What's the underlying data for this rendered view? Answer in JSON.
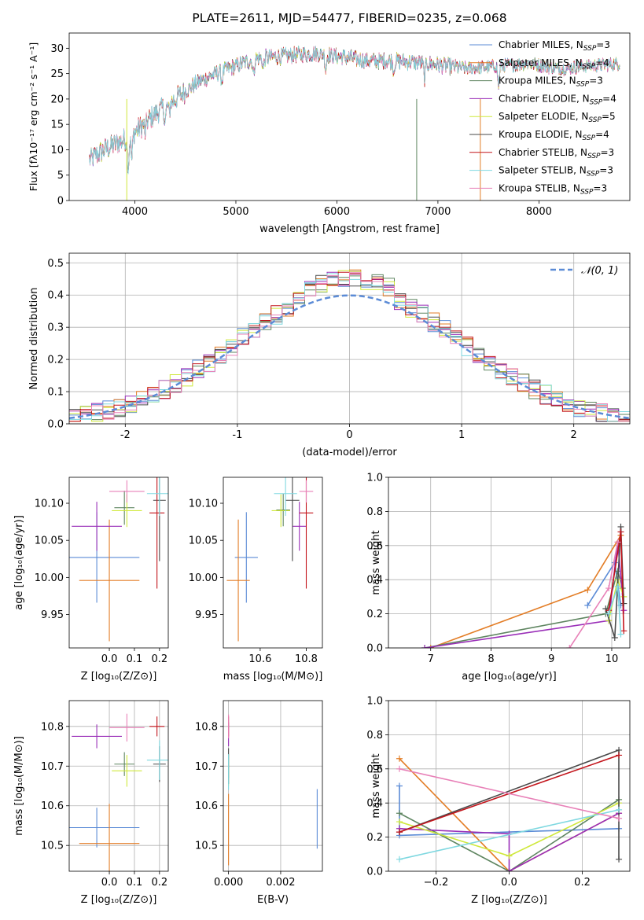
{
  "palette": [
    "#5b8bd6",
    "#e37d26",
    "#5e8560",
    "#9a2fb8",
    "#cfe83b",
    "#4a4a4a",
    "#c3151c",
    "#7fd8e0",
    "#e881b8"
  ],
  "chart_data": [
    {
      "id": "spectrum",
      "type": "line",
      "title": "PLATE=2611, MJD=54477, FIBERID=0235, z=0.068",
      "xlabel": "wavelength [Angstrom, rest frame]",
      "ylabel": "Flux [fλ10⁻¹⁷ erg cm⁻² s⁻¹ A⁻¹]",
      "xlim": [
        3350,
        8900
      ],
      "ylim": [
        0,
        33
      ],
      "xticks": [
        4000,
        5000,
        6000,
        7000,
        8000
      ],
      "yticks": [
        0,
        5,
        10,
        15,
        20,
        25,
        30
      ],
      "legend_position": "top-right",
      "series": [
        {
          "name": "Chabrier MILES, N",
          "sub": "SSP",
          "suffix": "=3"
        },
        {
          "name": "Salpeter MILES, N",
          "sub": "SSP",
          "suffix": "=4"
        },
        {
          "name": "Kroupa MILES, N",
          "sub": "SSP",
          "suffix": "=3"
        },
        {
          "name": "Chabrier ELODIE, N",
          "sub": "SSP",
          "suffix": "=4"
        },
        {
          "name": "Salpeter ELODIE, N",
          "sub": "SSP",
          "suffix": "=5"
        },
        {
          "name": "Kroupa ELODIE, N",
          "sub": "SSP",
          "suffix": "=4"
        },
        {
          "name": "Chabrier STELIB, N",
          "sub": "SSP",
          "suffix": "=3"
        },
        {
          "name": "Salpeter STELIB, N",
          "sub": "SSP",
          "suffix": "=3"
        },
        {
          "name": "Kroupa STELIB, N",
          "sub": "SSP",
          "suffix": "=3"
        }
      ],
      "continuum": [
        [
          3550,
          8
        ],
        [
          3700,
          10
        ],
        [
          3900,
          12
        ],
        [
          4000,
          13.5
        ],
        [
          4200,
          17
        ],
        [
          4400,
          20
        ],
        [
          4600,
          23
        ],
        [
          4800,
          25
        ],
        [
          5000,
          26.5
        ],
        [
          5200,
          28
        ],
        [
          5500,
          28.5
        ],
        [
          5800,
          29
        ],
        [
          6000,
          28.5
        ],
        [
          6300,
          27.5
        ],
        [
          6600,
          27.5
        ],
        [
          6900,
          27
        ],
        [
          7100,
          26.5
        ],
        [
          7300,
          26
        ],
        [
          7600,
          26.5
        ],
        [
          7900,
          27
        ],
        [
          8200,
          26
        ],
        [
          8500,
          26.5
        ],
        [
          8800,
          27
        ]
      ]
    },
    {
      "id": "residuals",
      "type": "histogram",
      "xlabel": "(data-model)/error",
      "ylabel": "Normed distribution",
      "xlim": [
        -2.5,
        2.5
      ],
      "ylim": [
        0,
        0.53
      ],
      "xticks": [
        -2,
        -1,
        0,
        1,
        2
      ],
      "yticks": [
        0.0,
        0.1,
        0.2,
        0.3,
        0.4,
        0.5
      ],
      "bin_width": 0.1,
      "reference_curve": "gaussian(0,1)",
      "legend_position": "top-right",
      "legend": "𝒩(0, 1)"
    },
    {
      "id": "age_vs_Z",
      "type": "errorbar",
      "xlabel": "Z [log₁₀(Z/Z⊙)]",
      "ylabel": "age  [log₁₀(age/yr)]",
      "xlim": [
        -0.16,
        0.235
      ],
      "ylim": [
        9.905,
        10.135
      ],
      "xticks": [
        0.0,
        0.1,
        0.2
      ],
      "xtick_labels": [
        "0.0",
        "0.1",
        "0.2"
      ],
      "yticks": [
        9.95,
        10.0,
        10.05,
        10.1
      ],
      "yticklabels": [
        "9.95",
        "10.00",
        "10.05",
        "10.10"
      ],
      "points": [
        {
          "x": -0.05,
          "xerr": 0.17,
          "y": 10.027,
          "yerr": 0.061
        },
        {
          "x": 0.0,
          "xerr": 0.12,
          "y": 9.996,
          "yerr": 0.082
        },
        {
          "x": 0.06,
          "xerr": 0.04,
          "y": 10.094,
          "yerr": 0.023
        },
        {
          "x": -0.05,
          "xerr": 0.1,
          "y": 10.069,
          "yerr": 0.033
        },
        {
          "x": 0.07,
          "xerr": 0.06,
          "y": 10.09,
          "yerr": 0.022
        },
        {
          "x": 0.2,
          "xerr": 0.025,
          "y": 10.104,
          "yerr": 0.082
        },
        {
          "x": 0.19,
          "xerr": 0.03,
          "y": 10.087,
          "yerr": 0.102
        },
        {
          "x": 0.2,
          "xerr": 0.05,
          "y": 10.113,
          "yerr": 0.03
        },
        {
          "x": 0.07,
          "xerr": 0.07,
          "y": 10.116,
          "yerr": 0.015
        }
      ]
    },
    {
      "id": "age_vs_mass",
      "type": "errorbar",
      "xlabel": "mass [log₁₀(M/M⊙)]",
      "xlim": [
        10.44,
        10.87
      ],
      "ylim": [
        9.905,
        10.135
      ],
      "xticks": [
        10.6,
        10.8
      ],
      "xtick_labels": [
        "10.6",
        "10.8"
      ],
      "yticks": [
        9.95,
        10.0,
        10.05,
        10.1
      ],
      "yticklabels": [
        "9.95",
        "10.00",
        "10.05",
        "10.10"
      ],
      "points": [
        {
          "x": 10.54,
          "xerr": 0.05,
          "y": 10.027,
          "yerr": 0.061
        },
        {
          "x": 10.505,
          "xerr": 0.05,
          "y": 9.996,
          "yerr": 0.082
        },
        {
          "x": 10.7,
          "xerr": 0.03,
          "y": 10.091,
          "yerr": 0.022
        },
        {
          "x": 10.77,
          "xerr": 0.03,
          "y": 10.069,
          "yerr": 0.033
        },
        {
          "x": 10.69,
          "xerr": 0.04,
          "y": 10.09,
          "yerr": 0.022
        },
        {
          "x": 10.74,
          "xerr": 0.03,
          "y": 10.104,
          "yerr": 0.082
        },
        {
          "x": 10.8,
          "xerr": 0.03,
          "y": 10.087,
          "yerr": 0.102
        },
        {
          "x": 10.71,
          "xerr": 0.05,
          "y": 10.113,
          "yerr": 0.03
        },
        {
          "x": 10.8,
          "xerr": 0.03,
          "y": 10.116,
          "yerr": 0.015
        }
      ]
    },
    {
      "id": "massweight_vs_age",
      "type": "line",
      "xlabel": "age  [log₁₀(age/yr)]",
      "ylabel": "mass weight",
      "xlim": [
        6.3,
        10.3
      ],
      "ylim": [
        0,
        1
      ],
      "xticks": [
        7,
        8,
        9,
        10
      ],
      "yticks": [
        0.0,
        0.2,
        0.4,
        0.6,
        0.8,
        1.0
      ],
      "series": [
        [
          [
            9.6,
            0.25
          ],
          [
            10.05,
            0.5
          ],
          [
            10.15,
            0.25
          ]
        ],
        [
          [
            7.0,
            0.0
          ],
          [
            9.6,
            0.34
          ],
          [
            10.15,
            0.66
          ]
        ],
        [
          [
            6.9,
            0.0
          ],
          [
            9.9,
            0.2
          ],
          [
            10.1,
            0.45
          ],
          [
            10.18,
            0.35
          ]
        ],
        [
          [
            6.9,
            0.0
          ],
          [
            9.95,
            0.16
          ],
          [
            10.1,
            0.62
          ],
          [
            10.2,
            0.22
          ]
        ],
        [
          [
            9.95,
            0.16
          ],
          [
            10.1,
            0.4
          ],
          [
            10.2,
            0.3
          ]
        ],
        [
          [
            9.9,
            0.23
          ],
          [
            10.05,
            0.06
          ],
          [
            10.15,
            0.71
          ],
          [
            10.2,
            0.26
          ]
        ],
        [
          [
            9.95,
            0.22
          ],
          [
            10.15,
            0.68
          ],
          [
            10.2,
            0.1
          ]
        ],
        [
          [
            9.95,
            0.2
          ],
          [
            10.1,
            0.36
          ],
          [
            10.15,
            0.08
          ]
        ],
        [
          [
            9.3,
            0.0
          ],
          [
            9.95,
            0.35
          ],
          [
            10.1,
            0.62
          ]
        ]
      ]
    },
    {
      "id": "mass_vs_Z",
      "type": "errorbar",
      "xlabel": "Z [log₁₀(Z/Z⊙)]",
      "ylabel": "mass [log₁₀(M/M⊙)]",
      "xlim": [
        -0.16,
        0.235
      ],
      "ylim": [
        10.435,
        10.865
      ],
      "xticks": [
        0.0,
        0.1,
        0.2
      ],
      "xtick_labels": [
        "0.0",
        "0.1",
        "0.2"
      ],
      "yticks": [
        10.5,
        10.6,
        10.7,
        10.8
      ],
      "yticklabels": [
        "10.5",
        "10.6",
        "10.7",
        "10.8"
      ],
      "points": [
        {
          "x": -0.05,
          "xerr": 0.17,
          "y": 10.545,
          "yerr": 0.05
        },
        {
          "x": 0.0,
          "xerr": 0.12,
          "y": 10.505,
          "yerr": 0.1
        },
        {
          "x": 0.06,
          "xerr": 0.04,
          "y": 10.705,
          "yerr": 0.03
        },
        {
          "x": -0.05,
          "xerr": 0.1,
          "y": 10.775,
          "yerr": 0.03
        },
        {
          "x": 0.07,
          "xerr": 0.06,
          "y": 10.688,
          "yerr": 0.04
        },
        {
          "x": 0.2,
          "xerr": 0.025,
          "y": 10.705,
          "yerr": 0.045
        },
        {
          "x": 0.19,
          "xerr": 0.03,
          "y": 10.8,
          "yerr": 0.025
        },
        {
          "x": 0.2,
          "xerr": 0.05,
          "y": 10.715,
          "yerr": 0.05
        },
        {
          "x": 0.07,
          "xerr": 0.07,
          "y": 10.797,
          "yerr": 0.035
        }
      ]
    },
    {
      "id": "mass_vs_ebv",
      "type": "errorbar",
      "xlabel": "E(B-V)",
      "xlim": [
        -0.0002,
        0.0036
      ],
      "ylim": [
        10.435,
        10.865
      ],
      "xticks": [
        0.0,
        0.002
      ],
      "xtick_labels": [
        "0.000",
        "0.002"
      ],
      "yticks": [
        10.5,
        10.6,
        10.7,
        10.8
      ],
      "yticklabels": [
        "10.5",
        "10.6",
        "10.7",
        "10.8"
      ],
      "points": [
        {
          "x": 0.0034,
          "xerr": 0,
          "y": 10.567,
          "yerr": 0.075
        },
        {
          "x": 0.0,
          "xerr": 0,
          "y": 10.54,
          "yerr": 0.09
        },
        {
          "x": 0.0,
          "xerr": 0,
          "y": 10.7,
          "yerr": 0.03
        },
        {
          "x": 0.0,
          "xerr": 0,
          "y": 10.78,
          "yerr": 0.03
        },
        {
          "x": 0.0,
          "xerr": 0,
          "y": 10.69,
          "yerr": 0.04
        },
        {
          "x": 0.0,
          "xerr": 0,
          "y": 10.7,
          "yerr": 0.045
        },
        {
          "x": 0.0,
          "xerr": 0,
          "y": 10.8,
          "yerr": 0.025
        },
        {
          "x": 0.0,
          "xerr": 0,
          "y": 10.685,
          "yerr": 0.045
        },
        {
          "x": 0.0,
          "xerr": 0,
          "y": 10.8,
          "yerr": 0.03
        }
      ]
    },
    {
      "id": "massweight_vs_Z",
      "type": "line",
      "xlabel": "Z [log₁₀(Z/Z⊙)]",
      "ylabel": "mass weight",
      "xlim": [
        -0.33,
        0.33
      ],
      "ylim": [
        0,
        1
      ],
      "xticks": [
        -0.2,
        0.0,
        0.2
      ],
      "xtick_labels": [
        "−0.2",
        "0.0",
        "0.2"
      ],
      "yticks": [
        0.0,
        0.2,
        0.4,
        0.6,
        0.8,
        1.0
      ],
      "series": [
        [
          [
            -0.3,
            0.5
          ],
          [
            -0.3,
            0.21
          ],
          [
            0.3,
            0.25
          ]
        ],
        [
          [
            -0.3,
            0.66
          ],
          [
            0.0,
            0.0
          ],
          [
            0.3,
            0.34
          ]
        ],
        [
          [
            -0.3,
            0.34
          ],
          [
            0.0,
            0.0
          ],
          [
            0.3,
            0.42
          ]
        ],
        [
          [
            -0.3,
            0.25
          ],
          [
            0.0,
            0.22
          ],
          [
            0.0,
            0.0
          ],
          [
            0.3,
            0.34
          ]
        ],
        [
          [
            -0.3,
            0.29
          ],
          [
            0.0,
            0.09
          ],
          [
            0.3,
            0.4
          ]
        ],
        [
          [
            -0.3,
            0.23
          ],
          [
            0.3,
            0.71
          ],
          [
            0.3,
            0.07
          ]
        ],
        [
          [
            -0.3,
            0.23
          ],
          [
            0.3,
            0.68
          ]
        ],
        [
          [
            -0.3,
            0.07
          ],
          [
            0.3,
            0.36
          ]
        ],
        [
          [
            -0.3,
            0.6
          ],
          [
            0.3,
            0.31
          ]
        ]
      ]
    }
  ]
}
